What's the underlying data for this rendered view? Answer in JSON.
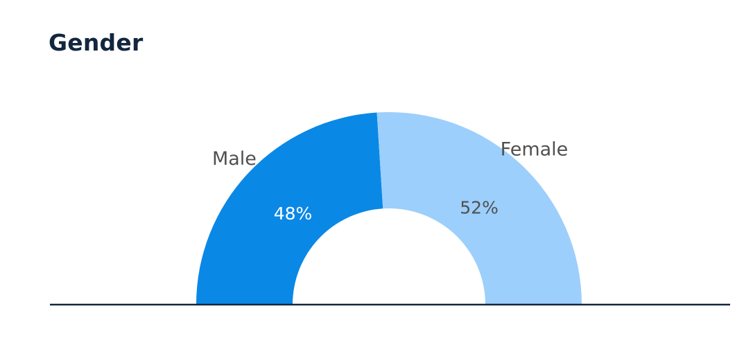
{
  "chart_data": {
    "type": "pie",
    "variant": "semi-donut",
    "title": "Gender",
    "slices": [
      {
        "label": "Male",
        "value": 48,
        "display": "48%",
        "color": "#0a88e6",
        "value_color": "#ffffff"
      },
      {
        "label": "Female",
        "value": 52,
        "display": "52%",
        "color": "#9ccffb",
        "value_color": "#505050"
      }
    ],
    "baseline_color": "#12263f"
  }
}
